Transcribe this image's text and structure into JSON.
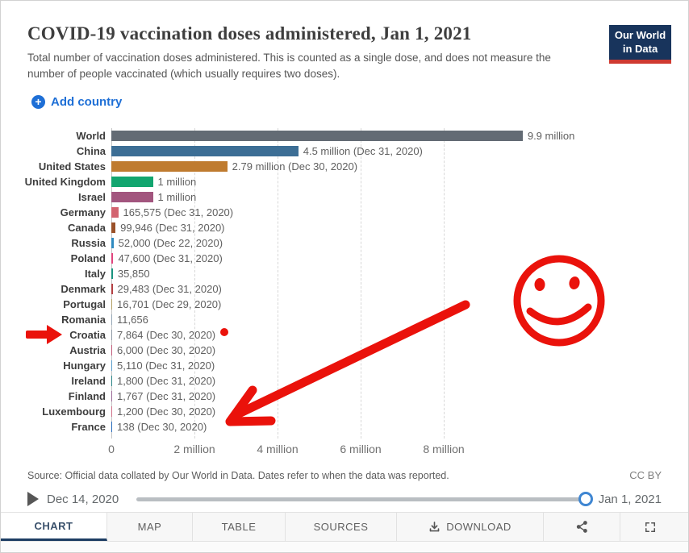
{
  "header": {
    "title": "COVID-19 vaccination doses administered, Jan 1, 2021",
    "subtitle": "Total number of vaccination doses administered. This is counted as a single dose, and does not measure the number of people vaccinated (which usually requires two doses).",
    "logo_line1": "Our World",
    "logo_line2": "in Data",
    "logo_bg_color": "#18345c",
    "logo_accent_color": "#cf3a31"
  },
  "controls": {
    "add_country_label": "Add country",
    "accent_color": "#1e6fd6"
  },
  "chart_data": {
    "type": "bar",
    "title": "COVID-19 vaccination doses administered, Jan 1, 2021",
    "xlabel": "",
    "ylabel": "",
    "xlim": [
      0,
      9900000
    ],
    "grid": "vertical-dashed",
    "x_ticks": [
      {
        "label": "0",
        "value": 0
      },
      {
        "label": "2 million",
        "value": 2000000
      },
      {
        "label": "4 million",
        "value": 4000000
      },
      {
        "label": "6 million",
        "value": 6000000
      },
      {
        "label": "8 million",
        "value": 8000000
      }
    ],
    "rows": [
      {
        "name": "World",
        "value": 9900000,
        "label": "9.9 million",
        "color": "#636b74"
      },
      {
        "name": "China",
        "value": 4500000,
        "label": "4.5 million (Dec 31, 2020)",
        "color": "#3c6e95"
      },
      {
        "name": "United States",
        "value": 2790000,
        "label": "2.79 million (Dec 30, 2020)",
        "color": "#bf7b2f"
      },
      {
        "name": "United Kingdom",
        "value": 1000000,
        "label": "1 million",
        "color": "#12a56f"
      },
      {
        "name": "Israel",
        "value": 1000000,
        "label": "1 million",
        "color": "#a2557e"
      },
      {
        "name": "Germany",
        "value": 165575,
        "label": "165,575 (Dec 31, 2020)",
        "color": "#d2636f"
      },
      {
        "name": "Canada",
        "value": 99946,
        "label": "99,946 (Dec 31, 2020)",
        "color": "#9a5129"
      },
      {
        "name": "Russia",
        "value": 52000,
        "label": "52,000 (Dec 22, 2020)",
        "color": "#2f8ac0"
      },
      {
        "name": "Poland",
        "value": 47600,
        "label": "47,600 (Dec 31, 2020)",
        "color": "#e0447d"
      },
      {
        "name": "Italy",
        "value": 35850,
        "label": "35,850",
        "color": "#19937f"
      },
      {
        "name": "Denmark",
        "value": 29483,
        "label": "29,483 (Dec 31, 2020)",
        "color": "#b23f42"
      },
      {
        "name": "Portugal",
        "value": 16701,
        "label": "16,701 (Dec 29, 2020)",
        "color": "#b3a065"
      },
      {
        "name": "Romania",
        "value": 11656,
        "label": "11,656",
        "color": "#94a6b6"
      },
      {
        "name": "Croatia",
        "value": 7864,
        "label": "7,864 (Dec 30, 2020)",
        "color": "#8e99a4"
      },
      {
        "name": "Austria",
        "value": 6000,
        "label": "6,000 (Dec 30, 2020)",
        "color": "#c05b7a"
      },
      {
        "name": "Hungary",
        "value": 5110,
        "label": "5,110 (Dec 31, 2020)",
        "color": "#5b9dca"
      },
      {
        "name": "Ireland",
        "value": 1800,
        "label": "1,800 (Dec 31, 2020)",
        "color": "#2d8587"
      },
      {
        "name": "Finland",
        "value": 1767,
        "label": "1,767 (Dec 31, 2020)",
        "color": "#9b6a97"
      },
      {
        "name": "Luxembourg",
        "value": 1200,
        "label": "1,200 (Dec 30, 2020)",
        "color": "#cf7189"
      },
      {
        "name": "France",
        "value": 138,
        "label": "138 (Dec 30, 2020)",
        "color": "#286bbb"
      }
    ]
  },
  "source": {
    "text": "Source: Official data collated by Our World in Data. Dates refer to when the data was reported.",
    "license": "CC BY"
  },
  "timeline": {
    "start_date": "Dec 14, 2020",
    "end_date": "Jan 1, 2021"
  },
  "footer": {
    "tabs": [
      "CHART",
      "MAP",
      "TABLE",
      "SOURCES",
      "DOWNLOAD"
    ],
    "active_tab": "CHART"
  },
  "annotations": {
    "color": "#ea120b",
    "items": [
      "smiley-face-doodle",
      "big-arrow-to-france-row",
      "small-arrow-at-croatia",
      "red-dot-after-croatia-value"
    ]
  }
}
